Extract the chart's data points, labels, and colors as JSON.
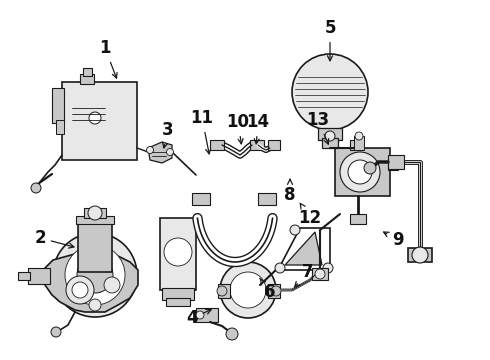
{
  "figsize": [
    4.9,
    3.6
  ],
  "dpi": 100,
  "bg": "white",
  "lc": "#1a1a1a",
  "fc_light": "#e8e8e8",
  "fc_mid": "#c8c8c8",
  "fc_dark": "#a0a0a0",
  "lw": 1.2,
  "labels": [
    [
      "1",
      105,
      48,
      118,
      82,
      12
    ],
    [
      "2",
      40,
      238,
      78,
      248,
      12
    ],
    [
      "3",
      168,
      130,
      163,
      152,
      12
    ],
    [
      "4",
      192,
      318,
      215,
      308,
      12
    ],
    [
      "5",
      330,
      28,
      330,
      65,
      12
    ],
    [
      "6",
      270,
      292,
      258,
      276,
      12
    ],
    [
      "7",
      308,
      272,
      292,
      290,
      12
    ],
    [
      "8",
      290,
      195,
      290,
      178,
      12
    ],
    [
      "9",
      398,
      240,
      380,
      230,
      12
    ],
    [
      "10",
      238,
      122,
      242,
      148,
      12
    ],
    [
      "11",
      202,
      118,
      210,
      158,
      12
    ],
    [
      "12",
      310,
      218,
      298,
      200,
      12
    ],
    [
      "13",
      318,
      120,
      330,
      148,
      12
    ],
    [
      "14",
      258,
      122,
      256,
      148,
      12
    ]
  ]
}
